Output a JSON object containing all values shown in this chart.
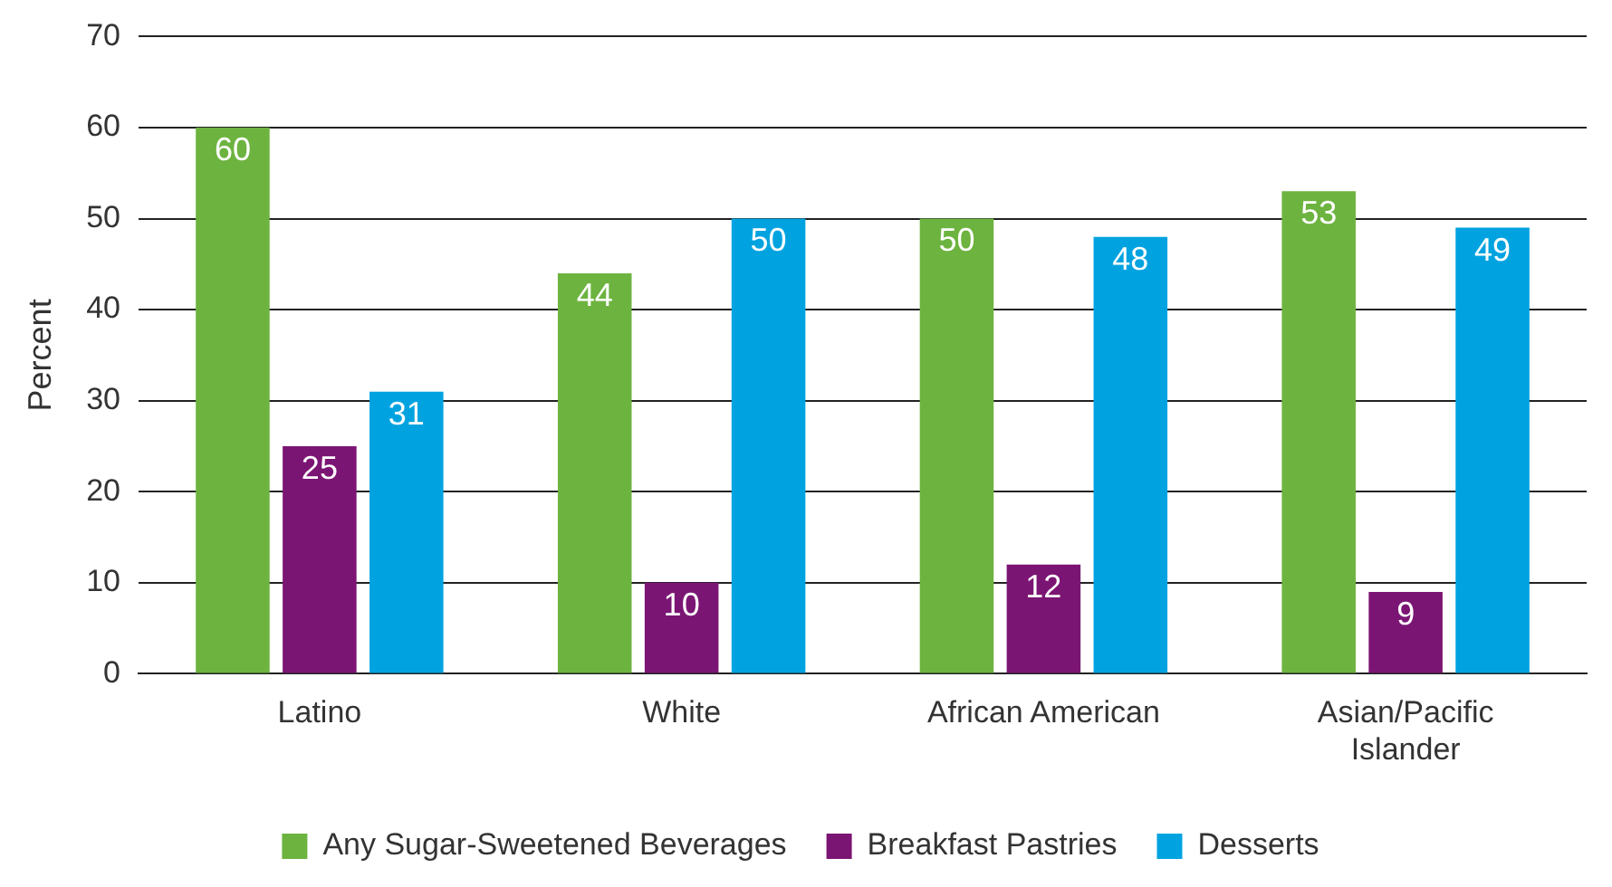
{
  "chart_data": {
    "type": "bar",
    "ylabel": "Percent",
    "categories": [
      "Latino",
      "White",
      "African American",
      "Asian/Pacific Islander"
    ],
    "series": [
      {
        "name": "Any Sugar-Sweetened Beverages",
        "color": "#6db33f",
        "values": [
          60,
          44,
          50,
          53
        ]
      },
      {
        "name": "Breakfast Pastries",
        "color": "#7b1574",
        "values": [
          25,
          10,
          12,
          9
        ]
      },
      {
        "name": "Desserts",
        "color": "#00a3e0",
        "values": [
          31,
          50,
          48,
          49
        ]
      }
    ],
    "ylim": [
      0,
      70
    ],
    "yticks": [
      0,
      10,
      20,
      30,
      40,
      50,
      60,
      70
    ],
    "grid": "y",
    "legend": "bottom",
    "data_labels": true
  }
}
